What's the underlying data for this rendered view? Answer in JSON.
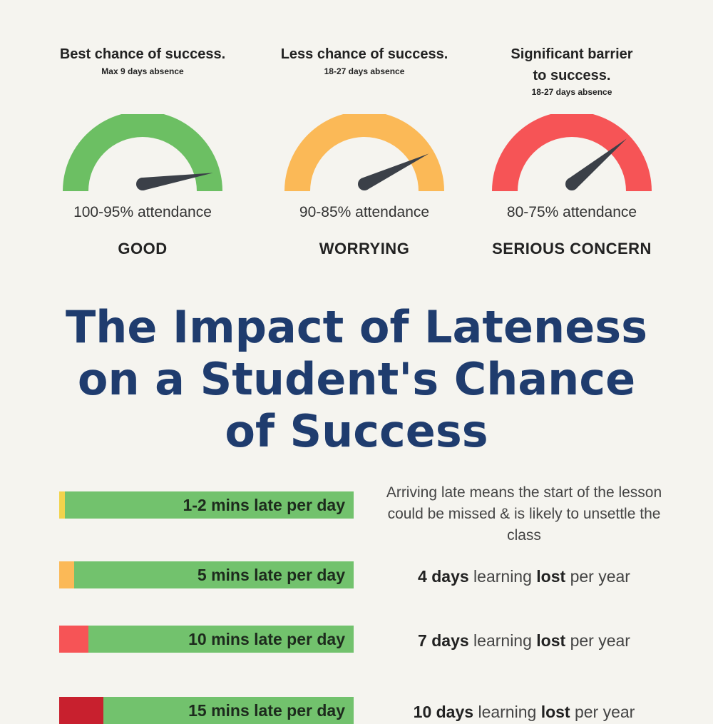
{
  "gauges": [
    {
      "title_lines": [
        "Best chance of success."
      ],
      "subtitle": "Max 9 days absence",
      "attendance": "100-95% attendance",
      "status": "GOOD",
      "color": "#6cbf63",
      "needle_level": 0.05
    },
    {
      "title_lines": [
        "Less chance of success."
      ],
      "subtitle": "18-27 days absence",
      "attendance": "90-85% attendance",
      "status": "WORRYING",
      "color": "#fbb957",
      "needle_level": 0.14
    },
    {
      "title_lines": [
        "Significant barrier",
        "to success."
      ],
      "subtitle": "18-27 days absence",
      "attendance": "80-75% attendance",
      "status": "SERIOUS CONCERN",
      "color": "#f65456",
      "needle_level": 0.22
    }
  ],
  "headline": {
    "line1": "The Impact of Lateness",
    "line2": "on a Student's Chance",
    "line3": "of Success"
  },
  "bar_base_color": "#72c26d",
  "rows": [
    {
      "label": "1-2 mins late per day",
      "segment_color": "#f2d34c",
      "segment_fraction": 0.02,
      "description_lines": [
        "Arriving late means the start of the lesson",
        "could be missed & is likely to unsettle the",
        "class"
      ]
    },
    {
      "label": "5 mins late per day",
      "segment_color": "#fbb957",
      "segment_fraction": 0.05,
      "lost_days": "4 days",
      "lost_mid": "learning",
      "lost_word": "lost",
      "lost_end": "per year"
    },
    {
      "label": "10 mins late per day",
      "segment_color": "#f65456",
      "segment_fraction": 0.1,
      "lost_days": "7 days",
      "lost_mid": "learning",
      "lost_word": "lost",
      "lost_end": "per year"
    },
    {
      "label": "15 mins late per day",
      "segment_color": "#c8202e",
      "segment_fraction": 0.15,
      "lost_days": "10 days",
      "lost_mid": "learning",
      "lost_word": "lost",
      "lost_end": "per year"
    }
  ]
}
